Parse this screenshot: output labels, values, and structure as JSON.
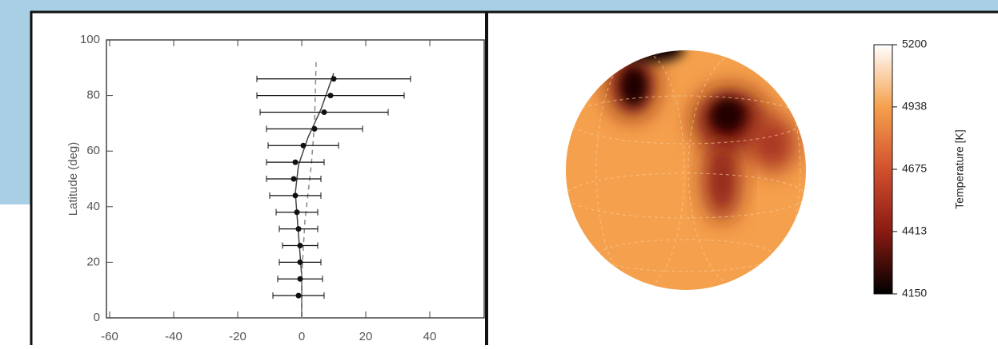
{
  "chart_data": [
    {
      "type": "errorbar",
      "ylabel": "Latitude (deg)",
      "y": [
        86,
        80,
        74,
        68,
        62,
        56,
        50,
        44,
        38,
        32,
        26,
        20,
        14,
        8
      ],
      "series": [
        {
          "color": "#111111",
          "values": [
            10,
            9,
            7,
            4,
            0.5,
            -2,
            -2.5,
            -2,
            -1.5,
            -1,
            -0.5,
            -0.5,
            -0.5,
            -1
          ],
          "errors": [
            24,
            23,
            20,
            15,
            11,
            9,
            8.5,
            8,
            6.5,
            6,
            5.5,
            6.5,
            7,
            8
          ]
        }
      ],
      "lines": [
        {
          "style": "solid",
          "color": "#444444",
          "x": [
            10,
            6,
            2,
            -1,
            -2,
            -1,
            0,
            0
          ],
          "y": [
            88,
            75,
            65,
            55,
            45,
            30,
            15,
            0
          ]
        },
        {
          "style": "dashed",
          "color": "#888888",
          "x": [
            4.5,
            4,
            3,
            1,
            0,
            0
          ],
          "y": [
            92,
            70,
            55,
            35,
            15,
            0
          ]
        }
      ],
      "xlim": [
        -61,
        57
      ],
      "xticks": [
        -60,
        -40,
        -20,
        0,
        20,
        40
      ],
      "ylim": [
        0,
        100
      ],
      "yticks": [
        0,
        20,
        40,
        60,
        80,
        100
      ]
    },
    {
      "type": "colorbar",
      "label": "Temperature [K]",
      "ylim": [
        4150,
        5200
      ],
      "yticks": [
        4150,
        4413,
        4675,
        4938,
        5200
      ],
      "colormap": [
        "#000000",
        "#8a1a12",
        "#d2502e",
        "#f5a04c",
        "#ffffff"
      ]
    }
  ]
}
